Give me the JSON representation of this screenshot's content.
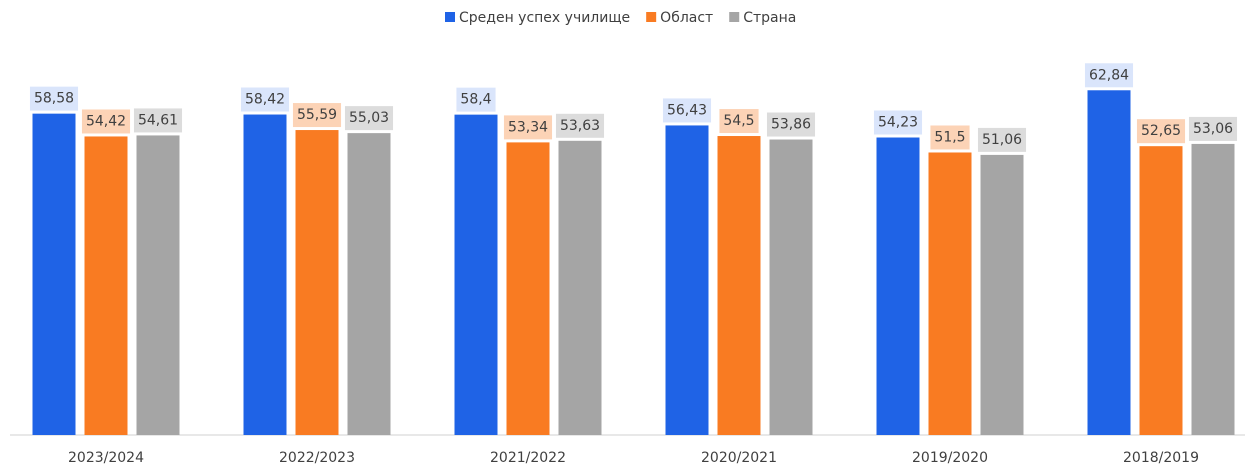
{
  "chart_data": {
    "type": "bar",
    "categories": [
      "2023/2024",
      "2022/2023",
      "2021/2022",
      "2020/2021",
      "2019/2020",
      "2018/2019"
    ],
    "series": [
      {
        "name": "Среден успех училище",
        "color": "#1f63e6",
        "label_bg": "#dae5fb",
        "values": [
          58.58,
          58.42,
          58.4,
          56.43,
          54.23,
          62.84
        ],
        "value_labels": [
          "58,58",
          "58,42",
          "58,4",
          "56,43",
          "54,23",
          "62,84"
        ]
      },
      {
        "name": "Област",
        "color": "#f97b22",
        "label_bg": "#fcd3b6",
        "values": [
          54.42,
          55.59,
          53.34,
          54.5,
          51.5,
          52.65
        ],
        "value_labels": [
          "54,42",
          "55,59",
          "53,34",
          "54,5",
          "51,5",
          "52,65"
        ]
      },
      {
        "name": "Страна",
        "color": "#a5a5a5",
        "label_bg": "#dcdcdc",
        "values": [
          54.61,
          55.03,
          53.63,
          53.86,
          51.06,
          53.06
        ],
        "value_labels": [
          "54,61",
          "55,03",
          "53,63",
          "53,86",
          "51,06",
          "53,06"
        ]
      }
    ],
    "ylim": [
      0,
      70
    ],
    "legend": "top"
  }
}
